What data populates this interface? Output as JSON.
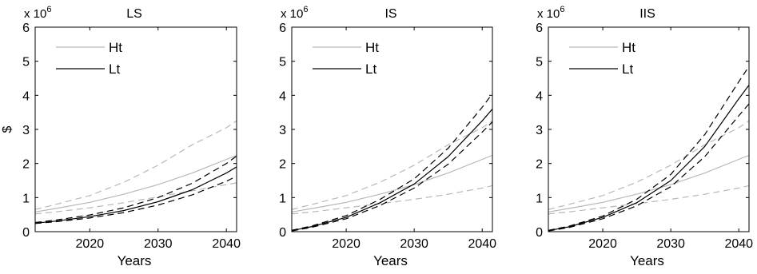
{
  "chart_data": [
    {
      "type": "line",
      "title": "LS",
      "xlabel": "Years",
      "ylabel": "$",
      "y_exponent_label": "x 10^6",
      "xlim": [
        2012,
        2041.5
      ],
      "ylim": [
        0,
        6
      ],
      "xticks": [
        2020,
        2030,
        2040
      ],
      "yticks": [
        0,
        1,
        2,
        3,
        4,
        5,
        6
      ],
      "grid": false,
      "legend_position": "top-left",
      "x": [
        2012,
        2015,
        2020,
        2025,
        2030,
        2035,
        2040,
        2041.5
      ],
      "series": [
        {
          "name": "Ht",
          "role": "mean",
          "color": "#b8b8b8",
          "dash": "solid",
          "values": [
            0.58,
            0.68,
            0.86,
            1.1,
            1.38,
            1.72,
            2.12,
            2.24
          ]
        },
        {
          "role": "band-upper",
          "color": "#b8b8b8",
          "dash": "dashed",
          "values": [
            0.65,
            0.8,
            1.06,
            1.45,
            1.95,
            2.55,
            3.05,
            3.25
          ]
        },
        {
          "role": "band-lower",
          "color": "#b8b8b8",
          "dash": "dashed",
          "values": [
            0.52,
            0.58,
            0.7,
            0.85,
            1.02,
            1.2,
            1.38,
            1.43
          ]
        },
        {
          "name": "Lt",
          "role": "mean",
          "color": "#000000",
          "dash": "solid",
          "values": [
            0.25,
            0.31,
            0.44,
            0.62,
            0.88,
            1.23,
            1.72,
            1.9
          ]
        },
        {
          "role": "band-upper",
          "color": "#000000",
          "dash": "dashed",
          "values": [
            0.27,
            0.34,
            0.49,
            0.7,
            1.0,
            1.42,
            2.0,
            2.22
          ]
        },
        {
          "role": "band-lower",
          "color": "#000000",
          "dash": "dashed",
          "values": [
            0.24,
            0.29,
            0.4,
            0.56,
            0.78,
            1.08,
            1.48,
            1.63
          ]
        }
      ]
    },
    {
      "type": "line",
      "title": "IS",
      "xlabel": "Years",
      "ylabel": "",
      "y_exponent_label": "x 10^6",
      "xlim": [
        2012,
        2041.5
      ],
      "ylim": [
        0,
        6
      ],
      "xticks": [
        2020,
        2030,
        2040
      ],
      "yticks": [
        0,
        1,
        2,
        3,
        4,
        5,
        6
      ],
      "grid": false,
      "legend_position": "top-left",
      "x": [
        2012,
        2015,
        2020,
        2025,
        2030,
        2035,
        2040,
        2041.5
      ],
      "series": [
        {
          "name": "Ht",
          "role": "mean",
          "color": "#b8b8b8",
          "dash": "solid",
          "values": [
            0.58,
            0.68,
            0.86,
            1.1,
            1.38,
            1.72,
            2.12,
            2.24
          ]
        },
        {
          "role": "band-upper",
          "color": "#b8b8b8",
          "dash": "dashed",
          "values": [
            0.65,
            0.8,
            1.06,
            1.45,
            1.95,
            2.55,
            3.05,
            3.25
          ]
        },
        {
          "role": "band-lower",
          "color": "#b8b8b8",
          "dash": "dashed",
          "values": [
            0.52,
            0.58,
            0.7,
            0.82,
            0.95,
            1.1,
            1.28,
            1.35
          ]
        },
        {
          "name": "Lt",
          "role": "mean",
          "color": "#000000",
          "dash": "solid",
          "values": [
            0.03,
            0.15,
            0.42,
            0.85,
            1.4,
            2.2,
            3.25,
            3.6
          ]
        },
        {
          "role": "band-upper",
          "color": "#000000",
          "dash": "dashed",
          "values": [
            0.04,
            0.17,
            0.47,
            0.95,
            1.55,
            2.45,
            3.65,
            4.05
          ]
        },
        {
          "role": "band-lower",
          "color": "#000000",
          "dash": "dashed",
          "values": [
            0.02,
            0.13,
            0.38,
            0.77,
            1.28,
            1.98,
            2.92,
            3.22
          ]
        }
      ]
    },
    {
      "type": "line",
      "title": "IIS",
      "xlabel": "Years",
      "ylabel": "",
      "y_exponent_label": "x 10^6",
      "xlim": [
        2012,
        2041.5
      ],
      "ylim": [
        0,
        6
      ],
      "xticks": [
        2020,
        2030,
        2040
      ],
      "yticks": [
        0,
        1,
        2,
        3,
        4,
        5,
        6
      ],
      "grid": false,
      "legend_position": "top-left",
      "x": [
        2012,
        2015,
        2020,
        2025,
        2030,
        2035,
        2040,
        2041.5
      ],
      "series": [
        {
          "name": "Ht",
          "role": "mean",
          "color": "#b8b8b8",
          "dash": "solid",
          "values": [
            0.58,
            0.68,
            0.86,
            1.1,
            1.38,
            1.72,
            2.12,
            2.24
          ]
        },
        {
          "role": "band-upper",
          "color": "#b8b8b8",
          "dash": "dashed",
          "values": [
            0.65,
            0.8,
            1.06,
            1.45,
            1.95,
            2.55,
            3.05,
            3.25
          ]
        },
        {
          "role": "band-lower",
          "color": "#b8b8b8",
          "dash": "dashed",
          "values": [
            0.52,
            0.58,
            0.7,
            0.82,
            0.95,
            1.1,
            1.28,
            1.35
          ]
        },
        {
          "name": "Lt",
          "role": "mean",
          "color": "#000000",
          "dash": "solid",
          "values": [
            0.03,
            0.14,
            0.42,
            0.85,
            1.5,
            2.5,
            3.9,
            4.3
          ]
        },
        {
          "role": "band-upper",
          "color": "#000000",
          "dash": "dashed",
          "values": [
            0.04,
            0.16,
            0.46,
            0.95,
            1.68,
            2.85,
            4.4,
            4.85
          ]
        },
        {
          "role": "band-lower",
          "color": "#000000",
          "dash": "dashed",
          "values": [
            0.02,
            0.12,
            0.38,
            0.76,
            1.32,
            2.2,
            3.4,
            3.75
          ]
        }
      ]
    }
  ]
}
